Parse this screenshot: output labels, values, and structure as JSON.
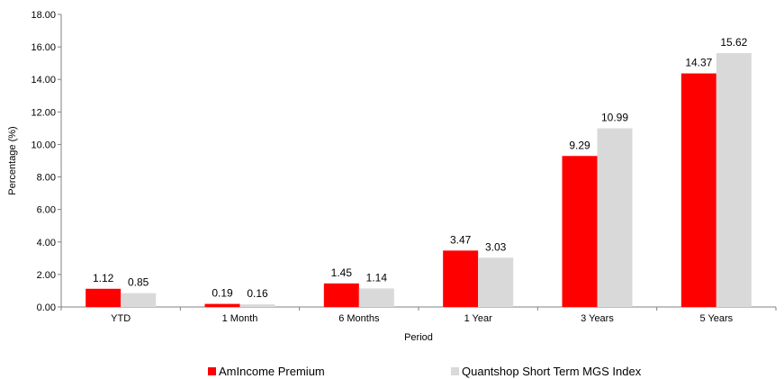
{
  "chart_data": {
    "type": "bar",
    "categories": [
      "YTD",
      "1 Month",
      "6 Months",
      "1 Year",
      "3 Years",
      "5 Years"
    ],
    "series": [
      {
        "name": "AmIncome Premium",
        "values": [
          1.12,
          0.19,
          1.45,
          3.47,
          9.29,
          14.37
        ],
        "color": "#ff0000"
      },
      {
        "name": "Quantshop Short Term MGS Index",
        "values": [
          0.85,
          0.16,
          1.14,
          3.03,
          10.99,
          15.62
        ],
        "color": "#d9d9d9"
      }
    ],
    "xlabel": "Period",
    "ylabel": "Percentage (%)",
    "ylim": [
      0,
      18
    ],
    "yticks": [
      "0.00",
      "2.00",
      "4.00",
      "6.00",
      "8.00",
      "10.00",
      "12.00",
      "14.00",
      "16.00",
      "18.00"
    ],
    "grid": false,
    "legend_position": "bottom"
  }
}
